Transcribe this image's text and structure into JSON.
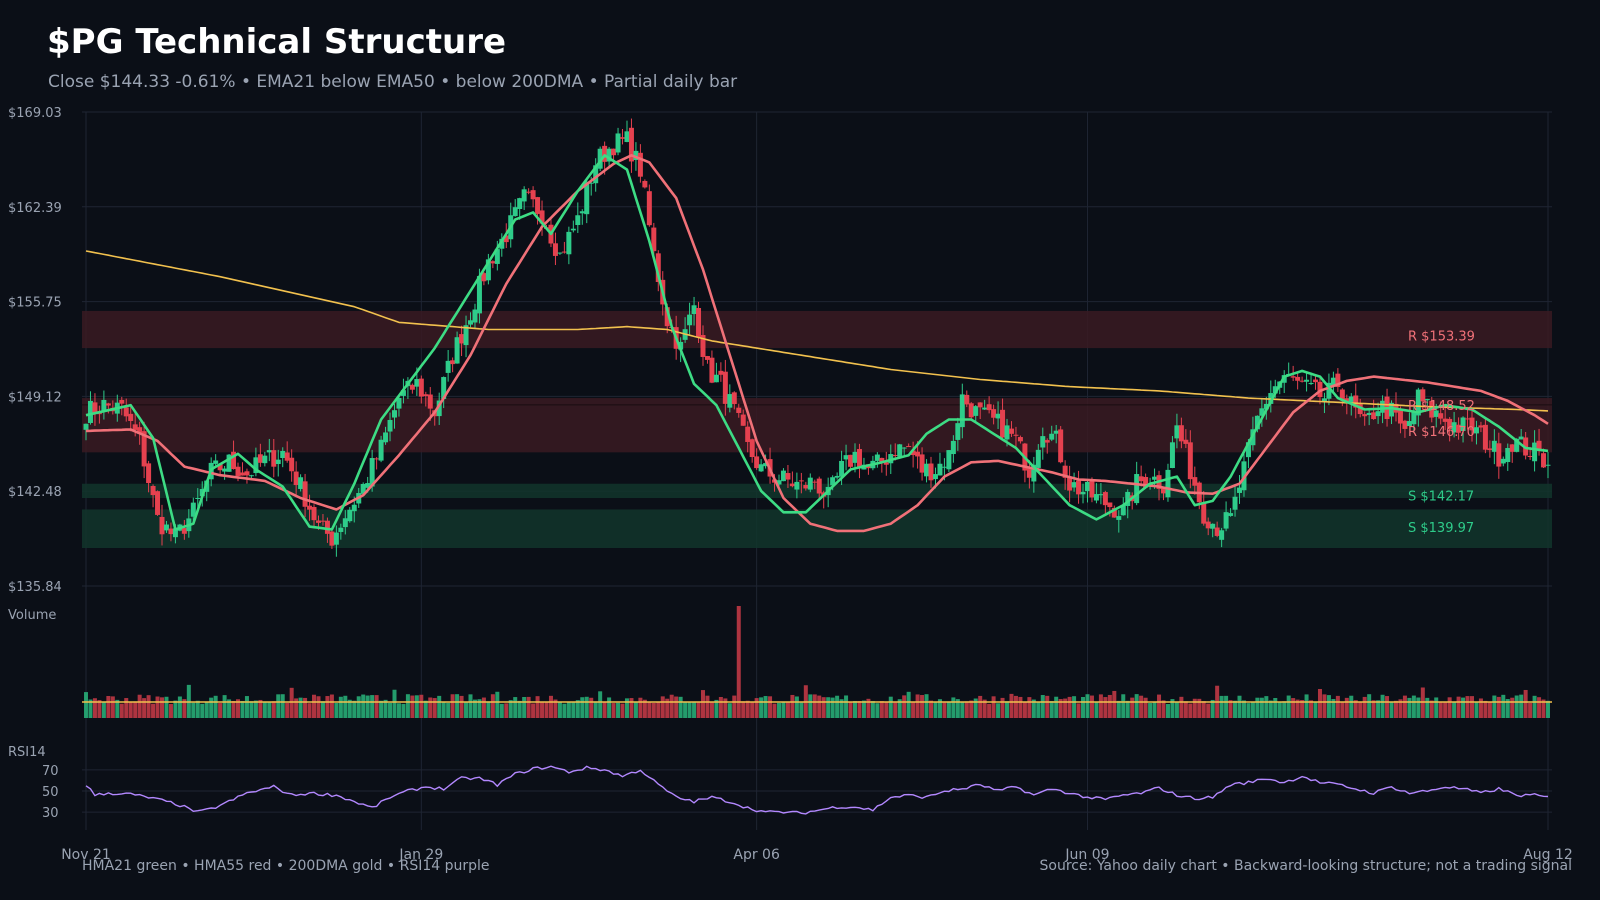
{
  "header": {
    "title": "$PG Technical Structure",
    "subtitle": "Close $144.33  -0.61%  •  EMA21 below EMA50 • below 200DMA  •  Partial daily bar"
  },
  "footer": {
    "left": "HMA21 green • HMA55 red • 200DMA gold  •  RSI14 purple",
    "right": "Source: Yahoo daily chart • Backward-looking structure; not a trading signal"
  },
  "colors": {
    "background": "#0b0f17",
    "up": "#2ecc8a",
    "down": "#e5414f",
    "hma21": "#3ddc84",
    "hma55": "#f07178",
    "dma200": "#f2c14e",
    "rsi": "#b388ff",
    "grid": "#1f2533",
    "resistance_zone": "#3a1a22",
    "support_zone": "#12352b"
  },
  "chart_data": {
    "type": "candlestick",
    "price_axis": {
      "ylim": [
        135.84,
        169.03
      ],
      "tick_labels": [
        "$169.03",
        "$162.39",
        "$155.75",
        "$149.12",
        "$142.48",
        "$135.84"
      ]
    },
    "x_ticks": [
      "Nov 21",
      "Jan 29",
      "Apr 06",
      "Jun 09",
      "Aug 12"
    ],
    "volume_label": "Volume",
    "rsi_label": "RSI14",
    "rsi_ticks": [
      "70",
      "50",
      "30"
    ],
    "rsi_ylim": [
      15,
      85
    ],
    "levels": [
      {
        "kind": "resistance",
        "label": "R $153.39",
        "value": 153.39
      },
      {
        "kind": "resistance",
        "label": "R $148.52",
        "value": 148.52
      },
      {
        "kind": "resistance",
        "label": "R $146.70",
        "value": 146.7
      },
      {
        "kind": "support",
        "label": "S $142.17",
        "value": 142.17
      },
      {
        "kind": "support",
        "label": "S $139.97",
        "value": 139.97
      }
    ],
    "zones": [
      {
        "kind": "resistance",
        "low": 152.5,
        "high": 155.1
      },
      {
        "kind": "resistance",
        "low": 145.2,
        "high": 149.0
      },
      {
        "kind": "support",
        "low": 142.0,
        "high": 143.0
      },
      {
        "kind": "support",
        "low": 138.5,
        "high": 141.2
      }
    ],
    "close_anchors": [
      [
        0,
        148.0
      ],
      [
        4,
        148.5
      ],
      [
        8,
        148.2
      ],
      [
        12,
        146.0
      ],
      [
        16,
        140.5
      ],
      [
        20,
        139.2
      ],
      [
        24,
        141.0
      ],
      [
        28,
        143.8
      ],
      [
        32,
        144.5
      ],
      [
        36,
        143.7
      ],
      [
        40,
        144.6
      ],
      [
        44,
        145.2
      ],
      [
        48,
        142.8
      ],
      [
        52,
        140.0
      ],
      [
        55,
        139.2
      ],
      [
        58,
        140.8
      ],
      [
        62,
        142.8
      ],
      [
        66,
        145.5
      ],
      [
        70,
        149.0
      ],
      [
        74,
        150.0
      ],
      [
        78,
        148.0
      ],
      [
        82,
        152.0
      ],
      [
        86,
        155.0
      ],
      [
        90,
        158.5
      ],
      [
        94,
        160.5
      ],
      [
        98,
        163.0
      ],
      [
        102,
        162.0
      ],
      [
        106,
        159.0
      ],
      [
        110,
        161.5
      ],
      [
        114,
        165.5
      ],
      [
        118,
        166.8
      ],
      [
        121,
        167.0
      ],
      [
        124,
        165.0
      ],
      [
        127,
        159.0
      ],
      [
        130,
        154.5
      ],
      [
        133,
        152.5
      ],
      [
        136,
        155.5
      ],
      [
        139,
        151.0
      ],
      [
        142,
        150.0
      ],
      [
        145,
        148.0
      ],
      [
        148,
        145.5
      ],
      [
        151,
        144.0
      ],
      [
        154,
        143.5
      ],
      [
        157,
        143.2
      ],
      [
        160,
        142.8
      ],
      [
        163,
        143.2
      ],
      [
        166,
        142.0
      ],
      [
        169,
        144.0
      ],
      [
        172,
        145.0
      ],
      [
        175,
        144.0
      ],
      [
        178,
        144.5
      ],
      [
        181,
        145.5
      ],
      [
        184,
        145.5
      ],
      [
        187,
        144.0
      ],
      [
        190,
        144.0
      ],
      [
        193,
        145.0
      ],
      [
        196,
        149.0
      ],
      [
        199,
        148.0
      ],
      [
        202,
        147.5
      ],
      [
        205,
        147.0
      ],
      [
        208,
        146.0
      ],
      [
        211,
        144.0
      ],
      [
        214,
        147.0
      ],
      [
        217,
        146.0
      ],
      [
        220,
        143.0
      ],
      [
        223,
        142.5
      ],
      [
        226,
        142.0
      ],
      [
        229,
        141.5
      ],
      [
        232,
        141.0
      ],
      [
        235,
        143.0
      ],
      [
        238,
        143.5
      ],
      [
        241,
        143.0
      ],
      [
        244,
        147.0
      ],
      [
        247,
        144.0
      ],
      [
        250,
        141.0
      ],
      [
        253,
        140.0
      ],
      [
        256,
        140.5
      ],
      [
        259,
        144.0
      ],
      [
        262,
        147.5
      ],
      [
        265,
        149.5
      ],
      [
        268,
        150.5
      ],
      [
        271,
        150.0
      ],
      [
        274,
        149.5
      ],
      [
        277,
        149.0
      ],
      [
        280,
        150.0
      ],
      [
        283,
        148.5
      ],
      [
        286,
        147.0
      ],
      [
        289,
        148.5
      ],
      [
        292,
        148.0
      ],
      [
        295,
        146.5
      ],
      [
        298,
        149.0
      ],
      [
        301,
        148.0
      ],
      [
        304,
        147.5
      ],
      [
        307,
        147.0
      ],
      [
        310,
        147.0
      ],
      [
        313,
        146.0
      ],
      [
        316,
        145.0
      ],
      [
        319,
        146.0
      ],
      [
        322,
        145.5
      ],
      [
        325,
        145.0
      ],
      [
        327,
        144.33
      ]
    ],
    "ma_anchors": {
      "hma21": [
        [
          0,
          147.8
        ],
        [
          10,
          148.5
        ],
        [
          15,
          146.2
        ],
        [
          20,
          139.8
        ],
        [
          24,
          140.2
        ],
        [
          28,
          144.0
        ],
        [
          34,
          145.1
        ],
        [
          38,
          144.0
        ],
        [
          44,
          142.8
        ],
        [
          50,
          140.0
        ],
        [
          55,
          139.8
        ],
        [
          60,
          143.0
        ],
        [
          66,
          147.5
        ],
        [
          72,
          150.0
        ],
        [
          78,
          152.5
        ],
        [
          84,
          155.5
        ],
        [
          90,
          158.5
        ],
        [
          96,
          161.5
        ],
        [
          100,
          162.0
        ],
        [
          104,
          160.5
        ],
        [
          110,
          163.5
        ],
        [
          116,
          166.0
        ],
        [
          121,
          165.0
        ],
        [
          126,
          160.0
        ],
        [
          131,
          154.0
        ],
        [
          136,
          150.0
        ],
        [
          141,
          148.5
        ],
        [
          146,
          145.5
        ],
        [
          151,
          142.5
        ],
        [
          156,
          141.0
        ],
        [
          161,
          141.0
        ],
        [
          166,
          142.5
        ],
        [
          171,
          144.0
        ],
        [
          178,
          144.5
        ],
        [
          184,
          145.0
        ],
        [
          188,
          146.5
        ],
        [
          193,
          147.5
        ],
        [
          198,
          147.5
        ],
        [
          203,
          146.5
        ],
        [
          208,
          145.5
        ],
        [
          214,
          143.5
        ],
        [
          220,
          141.5
        ],
        [
          226,
          140.5
        ],
        [
          232,
          141.5
        ],
        [
          238,
          143.0
        ],
        [
          244,
          143.5
        ],
        [
          248,
          141.5
        ],
        [
          252,
          141.8
        ],
        [
          256,
          143.5
        ],
        [
          262,
          147.0
        ],
        [
          268,
          150.5
        ],
        [
          272,
          150.9
        ],
        [
          276,
          150.5
        ],
        [
          280,
          149.0
        ],
        [
          286,
          148.2
        ],
        [
          292,
          148.3
        ],
        [
          298,
          148.0
        ],
        [
          304,
          148.5
        ],
        [
          310,
          148.2
        ],
        [
          316,
          147.0
        ],
        [
          322,
          145.5
        ],
        [
          327,
          145.3
        ]
      ],
      "hma55": [
        [
          0,
          146.7
        ],
        [
          10,
          146.8
        ],
        [
          16,
          146.0
        ],
        [
          22,
          144.2
        ],
        [
          30,
          143.6
        ],
        [
          40,
          143.2
        ],
        [
          48,
          142.0
        ],
        [
          56,
          141.2
        ],
        [
          62,
          142.2
        ],
        [
          70,
          145.0
        ],
        [
          78,
          148.0
        ],
        [
          86,
          152.0
        ],
        [
          94,
          157.0
        ],
        [
          102,
          161.0
        ],
        [
          110,
          163.5
        ],
        [
          118,
          165.4
        ],
        [
          122,
          166.0
        ],
        [
          126,
          165.5
        ],
        [
          132,
          163.0
        ],
        [
          138,
          158.0
        ],
        [
          144,
          152.0
        ],
        [
          150,
          146.0
        ],
        [
          156,
          142.0
        ],
        [
          162,
          140.2
        ],
        [
          168,
          139.7
        ],
        [
          174,
          139.7
        ],
        [
          180,
          140.2
        ],
        [
          186,
          141.5
        ],
        [
          192,
          143.5
        ],
        [
          198,
          144.5
        ],
        [
          204,
          144.6
        ],
        [
          210,
          144.2
        ],
        [
          216,
          143.8
        ],
        [
          222,
          143.3
        ],
        [
          228,
          143.2
        ],
        [
          234,
          143.0
        ],
        [
          240,
          142.8
        ],
        [
          246,
          142.4
        ],
        [
          252,
          142.3
        ],
        [
          258,
          143.0
        ],
        [
          264,
          145.5
        ],
        [
          270,
          148.0
        ],
        [
          276,
          149.5
        ],
        [
          282,
          150.2
        ],
        [
          288,
          150.5
        ],
        [
          294,
          150.3
        ],
        [
          300,
          150.1
        ],
        [
          306,
          149.8
        ],
        [
          312,
          149.5
        ],
        [
          318,
          148.8
        ],
        [
          324,
          147.8
        ],
        [
          327,
          147.2
        ]
      ],
      "dma200": [
        [
          0,
          159.3
        ],
        [
          30,
          157.5
        ],
        [
          60,
          155.4
        ],
        [
          70,
          154.3
        ],
        [
          90,
          153.8
        ],
        [
          110,
          153.8
        ],
        [
          121,
          154.0
        ],
        [
          130,
          153.8
        ],
        [
          140,
          153.0
        ],
        [
          160,
          152.0
        ],
        [
          180,
          151.0
        ],
        [
          200,
          150.3
        ],
        [
          220,
          149.8
        ],
        [
          240,
          149.5
        ],
        [
          260,
          149.0
        ],
        [
          280,
          148.7
        ],
        [
          300,
          148.4
        ],
        [
          320,
          148.2
        ],
        [
          327,
          148.1
        ]
      ]
    },
    "volume": {
      "spike_index": 146
    },
    "rsi_anchors": [
      [
        0,
        56
      ],
      [
        2,
        46
      ],
      [
        5,
        48
      ],
      [
        10,
        47
      ],
      [
        15,
        43
      ],
      [
        20,
        38
      ],
      [
        25,
        30
      ],
      [
        28,
        33
      ],
      [
        32,
        40
      ],
      [
        36,
        48
      ],
      [
        42,
        54
      ],
      [
        46,
        46
      ],
      [
        50,
        48
      ],
      [
        56,
        46
      ],
      [
        60,
        40
      ],
      [
        64,
        34
      ],
      [
        68,
        44
      ],
      [
        72,
        50
      ],
      [
        76,
        54
      ],
      [
        80,
        52
      ],
      [
        84,
        62
      ],
      [
        88,
        62
      ],
      [
        92,
        56
      ],
      [
        96,
        66
      ],
      [
        100,
        71
      ],
      [
        104,
        73
      ],
      [
        108,
        68
      ],
      [
        112,
        72
      ],
      [
        116,
        70
      ],
      [
        120,
        64
      ],
      [
        124,
        70
      ],
      [
        128,
        56
      ],
      [
        132,
        44
      ],
      [
        136,
        40
      ],
      [
        140,
        44
      ],
      [
        144,
        40
      ],
      [
        148,
        34
      ],
      [
        152,
        30
      ],
      [
        156,
        30
      ],
      [
        160,
        29
      ],
      [
        164,
        32
      ],
      [
        168,
        35
      ],
      [
        172,
        35
      ],
      [
        176,
        32
      ],
      [
        180,
        44
      ],
      [
        184,
        46
      ],
      [
        188,
        44
      ],
      [
        192,
        50
      ],
      [
        196,
        52
      ],
      [
        200,
        56
      ],
      [
        204,
        50
      ],
      [
        208,
        54
      ],
      [
        212,
        46
      ],
      [
        216,
        52
      ],
      [
        220,
        48
      ],
      [
        224,
        44
      ],
      [
        228,
        42
      ],
      [
        232,
        46
      ],
      [
        236,
        48
      ],
      [
        240,
        53
      ],
      [
        244,
        46
      ],
      [
        248,
        43
      ],
      [
        252,
        44
      ],
      [
        256,
        56
      ],
      [
        260,
        58
      ],
      [
        264,
        62
      ],
      [
        268,
        58
      ],
      [
        272,
        64
      ],
      [
        276,
        58
      ],
      [
        280,
        56
      ],
      [
        284,
        52
      ],
      [
        288,
        48
      ],
      [
        292,
        54
      ],
      [
        296,
        48
      ],
      [
        300,
        50
      ],
      [
        304,
        54
      ],
      [
        308,
        52
      ],
      [
        312,
        48
      ],
      [
        316,
        52
      ],
      [
        320,
        46
      ],
      [
        324,
        46
      ],
      [
        327,
        44
      ]
    ]
  }
}
